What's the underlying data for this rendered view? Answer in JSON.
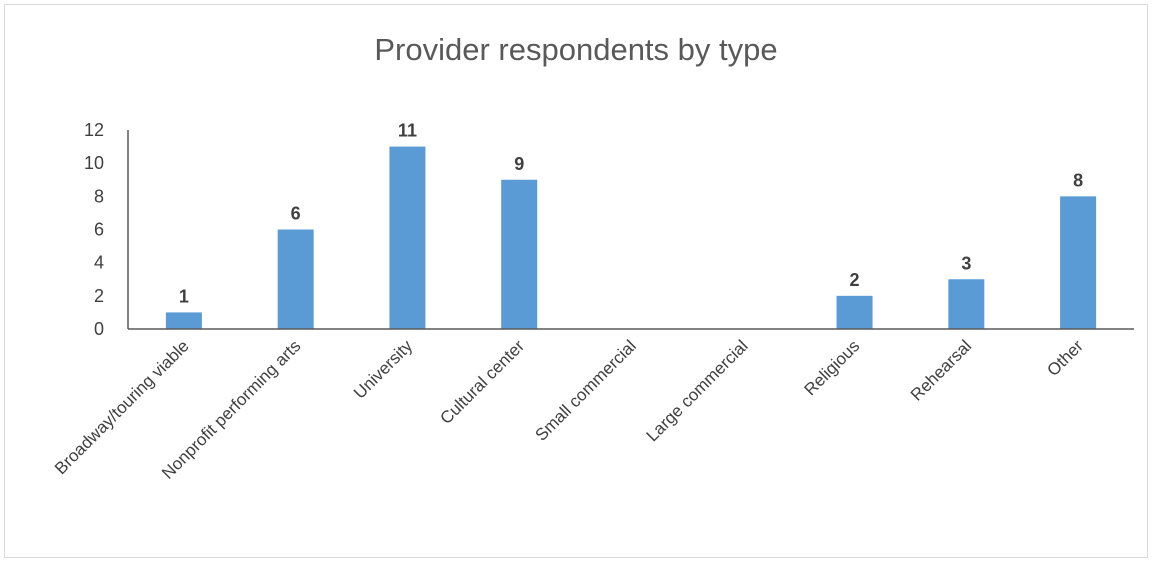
{
  "chart_data": {
    "type": "bar",
    "title": "Provider respondents by type",
    "categories": [
      "Broadway/touring viable",
      "Nonprofit performing arts",
      "University",
      "Cultural center",
      "Small commercial",
      "Large commercial",
      "Religious",
      "Rehearsal",
      "Other"
    ],
    "values": [
      1,
      6,
      11,
      9,
      0,
      0,
      2,
      3,
      8
    ],
    "data_labels": [
      "1",
      "6",
      "11",
      "9",
      "",
      "",
      "2",
      "3",
      "8"
    ],
    "ylim": [
      0,
      12
    ],
    "yticks": [
      "0",
      "2",
      "4",
      "6",
      "8",
      "10",
      "12"
    ],
    "xlabel": "",
    "ylabel": "",
    "grid": false,
    "legend": "none",
    "colors": {
      "bar": "#5b9bd5",
      "axis": "#404040",
      "text": "#404040"
    }
  }
}
